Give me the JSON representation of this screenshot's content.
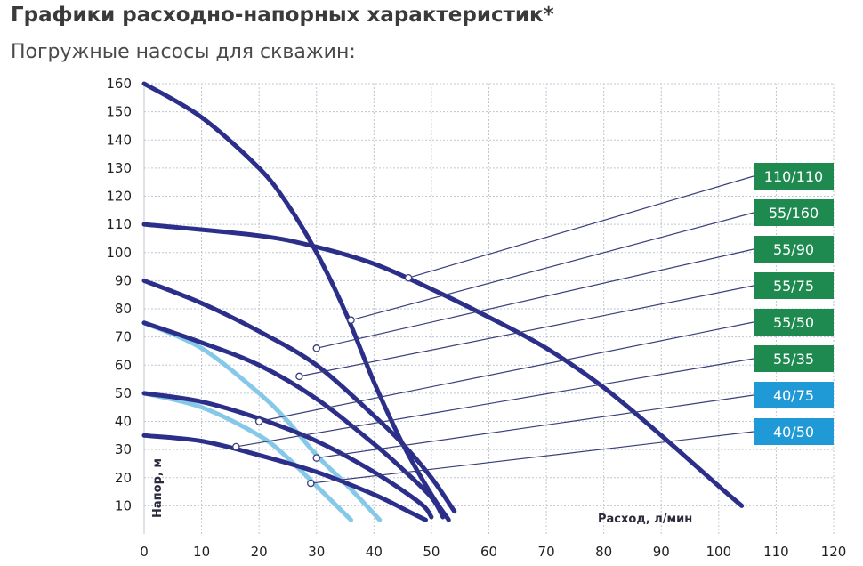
{
  "header": {
    "title": "Графики расходно-напорных характеристик*",
    "subtitle": "Погружные насосы для скважин:"
  },
  "chart_data": {
    "type": "line",
    "xlabel": "Расход, л/мин",
    "ylabel": "Напор, м",
    "xlim": [
      0,
      120
    ],
    "ylim": [
      0,
      160
    ],
    "x_ticks": [
      0,
      10,
      20,
      30,
      40,
      50,
      60,
      70,
      80,
      90,
      100,
      110,
      120
    ],
    "y_ticks": [
      10,
      20,
      30,
      40,
      50,
      60,
      70,
      80,
      90,
      100,
      110,
      120,
      130,
      140,
      150,
      160
    ],
    "grid": true,
    "colors": {
      "dark_series": "#2b2f8a",
      "light_series": "#86c8e8",
      "green_badge": "#1f8a50",
      "blue_badge": "#1f9ad6",
      "grid": "#bfc6d0",
      "leader": "#3b3f7a"
    },
    "series": [
      {
        "name": "110/110",
        "color": "dark",
        "x": [
          0,
          20,
          30,
          40,
          50,
          60,
          70,
          80,
          90,
          100,
          104
        ],
        "y": [
          110,
          106,
          102,
          96,
          87,
          77,
          66,
          52,
          35,
          17,
          10
        ]
      },
      {
        "name": "55/160",
        "color": "dark",
        "x": [
          0,
          10,
          20,
          25,
          30,
          35,
          40,
          45,
          50,
          53
        ],
        "y": [
          160,
          148,
          130,
          117,
          100,
          79,
          54,
          32,
          14,
          5
        ]
      },
      {
        "name": "55/90",
        "color": "dark",
        "x": [
          0,
          10,
          20,
          30,
          40,
          45,
          50,
          54
        ],
        "y": [
          90,
          82,
          72,
          60,
          42,
          32,
          20,
          8
        ]
      },
      {
        "name": "55/75",
        "color": "dark",
        "x": [
          0,
          10,
          20,
          30,
          40,
          45,
          50,
          52
        ],
        "y": [
          75,
          68,
          60,
          48,
          32,
          23,
          13,
          6
        ]
      },
      {
        "name": "55/50",
        "color": "dark",
        "x": [
          0,
          10,
          20,
          30,
          40,
          48,
          50
        ],
        "y": [
          50,
          47,
          41,
          33,
          22,
          11,
          6
        ]
      },
      {
        "name": "55/35",
        "color": "dark",
        "x": [
          0,
          10,
          20,
          30,
          40,
          46,
          49
        ],
        "y": [
          35,
          33,
          28,
          22,
          14,
          8,
          5
        ]
      },
      {
        "name": "40/75",
        "color": "light",
        "x": [
          0,
          10,
          20,
          25,
          30,
          35,
          41
        ],
        "y": [
          75,
          66,
          50,
          40,
          28,
          18,
          5
        ]
      },
      {
        "name": "40/50",
        "color": "light",
        "x": [
          0,
          10,
          20,
          25,
          30,
          36
        ],
        "y": [
          50,
          45,
          35,
          27,
          17,
          5
        ]
      }
    ],
    "markers": [
      {
        "series": "110/110",
        "x": 46,
        "y": 91
      },
      {
        "series": "55/160",
        "x": 36,
        "y": 76
      },
      {
        "series": "55/90",
        "x": 30,
        "y": 66
      },
      {
        "series": "55/75",
        "x": 27,
        "y": 56
      },
      {
        "series": "55/50",
        "x": 20,
        "y": 40
      },
      {
        "series": "55/35",
        "x": 16,
        "y": 31
      },
      {
        "series": "40/75",
        "x": 30,
        "y": 27
      },
      {
        "series": "40/50",
        "x": 29,
        "y": 18
      }
    ],
    "legend": {
      "placement": "right",
      "items": [
        {
          "label": "110/110",
          "color": "green"
        },
        {
          "label": "55/160",
          "color": "green"
        },
        {
          "label": "55/90",
          "color": "green"
        },
        {
          "label": "55/75",
          "color": "green"
        },
        {
          "label": "55/50",
          "color": "green"
        },
        {
          "label": "55/35",
          "color": "green"
        },
        {
          "label": "40/75",
          "color": "blue"
        },
        {
          "label": "40/50",
          "color": "blue"
        }
      ]
    }
  }
}
